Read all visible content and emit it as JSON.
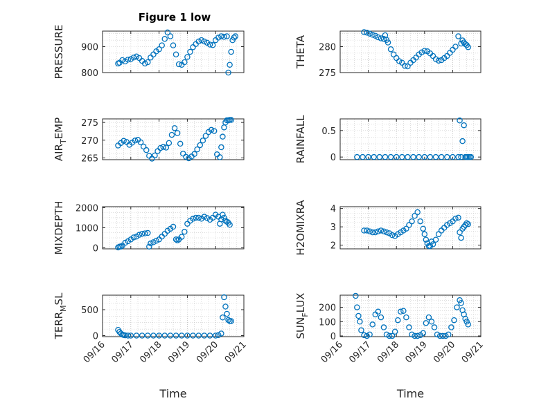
{
  "figure_title": "Figure 1 low",
  "xlabel": "Time",
  "x_tick_labels": [
    "09/16",
    "09/17",
    "09/18",
    "09/19",
    "09/20",
    "09/21"
  ],
  "colors": {
    "marker": "#0072bd",
    "axes": "#262626",
    "grid": "#bdbdbd"
  },
  "chart_data": [
    {
      "type": "scatter",
      "name": "PRESSURE",
      "ylabel": "PRESSURE",
      "ylabel_sub": "",
      "ylim": [
        800,
        960
      ],
      "yticks": [
        800,
        900
      ],
      "ytick_labels": [
        "800",
        "900"
      ],
      "xlim": [
        0,
        5
      ],
      "grid": true,
      "x": [
        0.55,
        0.6,
        0.7,
        0.8,
        0.9,
        1.0,
        1.1,
        1.2,
        1.3,
        1.4,
        1.5,
        1.6,
        1.7,
        1.8,
        1.9,
        2.0,
        2.1,
        2.2,
        2.3,
        2.4,
        2.5,
        2.6,
        2.7,
        2.8,
        2.9,
        3.0,
        3.1,
        3.2,
        3.3,
        3.4,
        3.5,
        3.6,
        3.7,
        3.8,
        3.9,
        4.0,
        4.1,
        4.2,
        4.3,
        4.4,
        4.45,
        4.5,
        4.55,
        4.6,
        4.65,
        4.7
      ],
      "y": [
        835,
        838,
        848,
        843,
        850,
        852,
        858,
        862,
        856,
        845,
        835,
        840,
        858,
        870,
        882,
        890,
        905,
        930,
        955,
        940,
        905,
        870,
        832,
        830,
        840,
        860,
        880,
        898,
        910,
        920,
        925,
        920,
        915,
        908,
        906,
        925,
        935,
        940,
        938,
        940,
        800,
        830,
        880,
        925,
        935,
        940
      ]
    },
    {
      "type": "scatter",
      "name": "THETA",
      "ylabel": "THETA",
      "ylabel_sub": "",
      "ylim": [
        275,
        283
      ],
      "yticks": [
        275,
        280
      ],
      "ytick_labels": [
        "275",
        "280"
      ],
      "xlim": [
        0,
        5
      ],
      "grid": true,
      "x": [
        0.85,
        0.95,
        1.05,
        1.15,
        1.25,
        1.35,
        1.45,
        1.55,
        1.6,
        1.65,
        1.7,
        1.8,
        1.9,
        2.0,
        2.1,
        2.2,
        2.3,
        2.4,
        2.5,
        2.6,
        2.7,
        2.8,
        2.9,
        3.0,
        3.1,
        3.2,
        3.3,
        3.4,
        3.5,
        3.6,
        3.7,
        3.8,
        3.9,
        4.0,
        4.1,
        4.2,
        4.3,
        4.35,
        4.4,
        4.45,
        4.5,
        4.55
      ],
      "y": [
        282.8,
        282.7,
        282.5,
        282.3,
        282.1,
        281.8,
        281.6,
        281.5,
        282.2,
        281.3,
        280.8,
        279.5,
        278.5,
        277.8,
        277.2,
        276.9,
        276.3,
        276.2,
        276.9,
        277.4,
        277.9,
        278.5,
        278.9,
        279.2,
        279.1,
        278.7,
        278.2,
        277.6,
        277.3,
        277.4,
        277.8,
        278.2,
        278.8,
        279.4,
        280.0,
        282.0,
        280.6,
        281.2,
        280.8,
        280.5,
        280.3,
        279.9
      ]
    },
    {
      "type": "scatter",
      "name": "AIR_TEMP",
      "ylabel": "AIR",
      "ylabel_sub": "T",
      "ylabel_suffix": "EMP",
      "ylim": [
        264.5,
        276
      ],
      "yticks": [
        265,
        270,
        275
      ],
      "ytick_labels": [
        "265",
        "270",
        "275"
      ],
      "xlim": [
        0,
        5
      ],
      "grid": true,
      "x": [
        0.55,
        0.65,
        0.75,
        0.85,
        0.95,
        1.05,
        1.15,
        1.25,
        1.35,
        1.45,
        1.55,
        1.65,
        1.75,
        1.85,
        1.95,
        2.05,
        2.15,
        2.25,
        2.35,
        2.45,
        2.55,
        2.65,
        2.75,
        2.85,
        2.95,
        3.05,
        3.15,
        3.25,
        3.35,
        3.45,
        3.55,
        3.65,
        3.75,
        3.85,
        3.95,
        4.05,
        4.15,
        4.2,
        4.25,
        4.3,
        4.35,
        4.4,
        4.45,
        4.5,
        4.55
      ],
      "y": [
        268.5,
        269.2,
        269.8,
        269.5,
        268.7,
        269.3,
        269.9,
        270.1,
        269.4,
        268.2,
        267.2,
        265.6,
        264.8,
        265.7,
        266.9,
        267.8,
        268.1,
        267.9,
        269.2,
        271.5,
        273.4,
        272.0,
        269.0,
        266.2,
        265.3,
        264.9,
        265.4,
        266.1,
        267.4,
        268.6,
        269.9,
        271.2,
        272.3,
        272.9,
        272.6,
        266.0,
        265.2,
        268.0,
        271.0,
        273.6,
        275.0,
        275.6,
        275.6,
        275.7,
        275.7
      ]
    },
    {
      "type": "scatter",
      "name": "RAINFALL",
      "ylabel": "RAINFALL",
      "ylabel_sub": "",
      "ylim": [
        -0.05,
        0.72
      ],
      "yticks": [
        0,
        0.5
      ],
      "ytick_labels": [
        "0",
        "0.5"
      ],
      "xlim": [
        0,
        5
      ],
      "grid": true,
      "x": [
        0.6,
        0.8,
        1.0,
        1.2,
        1.4,
        1.6,
        1.8,
        2.0,
        2.2,
        2.4,
        2.6,
        2.8,
        3.0,
        3.2,
        3.4,
        3.6,
        3.8,
        4.0,
        4.2,
        4.25,
        4.3,
        4.35,
        4.4,
        4.45,
        4.5,
        4.55,
        4.6,
        4.65
      ],
      "y": [
        0,
        0,
        0,
        0,
        0,
        0,
        0,
        0,
        0,
        0,
        0,
        0,
        0,
        0,
        0,
        0,
        0,
        0,
        0,
        0.69,
        0,
        0.3,
        0.6,
        0,
        0,
        0,
        0,
        0
      ]
    },
    {
      "type": "scatter",
      "name": "MIXDEPTH",
      "ylabel": "MIXDEPTH",
      "ylabel_sub": "",
      "ylim": [
        -50,
        2050
      ],
      "yticks": [
        0,
        1000,
        2000
      ],
      "ytick_labels": [
        "0",
        "1000",
        "2000"
      ],
      "xlim": [
        0,
        5
      ],
      "grid": true,
      "x": [
        0.55,
        0.6,
        0.65,
        0.7,
        0.8,
        0.9,
        1.0,
        1.1,
        1.2,
        1.3,
        1.4,
        1.5,
        1.6,
        1.65,
        1.7,
        1.8,
        1.9,
        2.0,
        2.1,
        2.2,
        2.3,
        2.4,
        2.5,
        2.6,
        2.65,
        2.7,
        2.8,
        2.9,
        3.0,
        3.1,
        3.2,
        3.3,
        3.4,
        3.5,
        3.6,
        3.7,
        3.8,
        3.9,
        4.0,
        4.1,
        4.15,
        4.2,
        4.25,
        4.3,
        4.35,
        4.4,
        4.45,
        4.5
      ],
      "y": [
        20,
        60,
        60,
        110,
        250,
        330,
        420,
        520,
        560,
        650,
        700,
        720,
        740,
        60,
        220,
        280,
        350,
        420,
        560,
        700,
        850,
        950,
        1050,
        420,
        370,
        420,
        550,
        800,
        1200,
        1350,
        1450,
        1500,
        1500,
        1450,
        1550,
        1480,
        1400,
        1500,
        1650,
        1550,
        1200,
        1420,
        1650,
        1500,
        1350,
        1300,
        1250,
        1150
      ]
    },
    {
      "type": "scatter",
      "name": "H2OMIXRA",
      "ylabel": "H2OMIXRA",
      "ylabel_sub": "",
      "ylim": [
        1.8,
        4.1
      ],
      "yticks": [
        2,
        3,
        4
      ],
      "ytick_labels": [
        "2",
        "3",
        "4"
      ],
      "xlim": [
        0,
        5
      ],
      "grid": true,
      "x": [
        0.85,
        0.95,
        1.05,
        1.15,
        1.25,
        1.35,
        1.45,
        1.55,
        1.65,
        1.75,
        1.85,
        1.95,
        2.05,
        2.15,
        2.25,
        2.35,
        2.45,
        2.55,
        2.65,
        2.75,
        2.85,
        2.95,
        3.0,
        3.05,
        3.1,
        3.15,
        3.2,
        3.25,
        3.3,
        3.4,
        3.5,
        3.6,
        3.7,
        3.8,
        3.9,
        4.0,
        4.1,
        4.2,
        4.25,
        4.3,
        4.35,
        4.4,
        4.45,
        4.5,
        4.55
      ],
      "y": [
        2.8,
        2.8,
        2.75,
        2.7,
        2.7,
        2.75,
        2.8,
        2.75,
        2.7,
        2.65,
        2.55,
        2.5,
        2.6,
        2.7,
        2.8,
        2.9,
        3.1,
        3.3,
        3.6,
        3.8,
        3.3,
        2.9,
        2.6,
        2.3,
        2.1,
        1.95,
        1.95,
        2.2,
        2.05,
        2.3,
        2.6,
        2.8,
        2.95,
        3.1,
        3.2,
        3.3,
        3.45,
        3.5,
        2.7,
        2.4,
        2.9,
        3.0,
        3.1,
        3.2,
        3.15
      ]
    },
    {
      "type": "scatter",
      "name": "TERR_MSL",
      "ylabel": "TERR",
      "ylabel_sub": "M",
      "ylabel_suffix": "SL",
      "ylim": [
        -20,
        780
      ],
      "yticks": [
        0,
        500
      ],
      "ytick_labels": [
        "0",
        "500"
      ],
      "xlim": [
        0,
        5
      ],
      "grid": true,
      "x": [
        0.55,
        0.6,
        0.65,
        0.7,
        0.75,
        0.8,
        0.9,
        1.0,
        1.2,
        1.4,
        1.6,
        1.8,
        2.0,
        2.2,
        2.4,
        2.6,
        2.8,
        3.0,
        3.2,
        3.4,
        3.6,
        3.8,
        4.0,
        4.1,
        4.2,
        4.25,
        4.3,
        4.35,
        4.4,
        4.45,
        4.5,
        4.55
      ],
      "y": [
        110,
        70,
        40,
        20,
        10,
        5,
        0,
        0,
        0,
        0,
        0,
        0,
        0,
        0,
        0,
        0,
        0,
        0,
        0,
        0,
        0,
        0,
        0,
        10,
        40,
        350,
        740,
        560,
        420,
        300,
        280,
        280
      ]
    },
    {
      "type": "scatter",
      "name": "SUN_FLUX",
      "ylabel": "SUN",
      "ylabel_sub": "F",
      "ylabel_suffix": "LUX",
      "ylim": [
        -5,
        285
      ],
      "yticks": [
        0,
        100,
        200
      ],
      "ytick_labels": [
        "0",
        "100",
        "200"
      ],
      "xlim": [
        0,
        5
      ],
      "grid": true,
      "x": [
        0.55,
        0.6,
        0.65,
        0.7,
        0.75,
        0.85,
        0.95,
        1.05,
        1.15,
        1.25,
        1.35,
        1.45,
        1.55,
        1.65,
        1.75,
        1.85,
        1.95,
        2.05,
        2.15,
        2.25,
        2.35,
        2.45,
        2.55,
        2.65,
        2.75,
        2.85,
        2.95,
        3.05,
        3.15,
        3.25,
        3.35,
        3.45,
        3.55,
        3.65,
        3.75,
        3.85,
        3.95,
        4.05,
        4.15,
        4.25,
        4.3,
        4.35,
        4.4,
        4.45,
        4.5,
        4.55
      ],
      "y": [
        280,
        200,
        140,
        100,
        40,
        5,
        0,
        10,
        80,
        150,
        170,
        130,
        60,
        10,
        0,
        0,
        30,
        110,
        170,
        175,
        130,
        60,
        10,
        0,
        0,
        5,
        20,
        90,
        130,
        100,
        60,
        10,
        0,
        0,
        0,
        10,
        60,
        110,
        200,
        250,
        230,
        180,
        150,
        120,
        100,
        80
      ]
    }
  ]
}
